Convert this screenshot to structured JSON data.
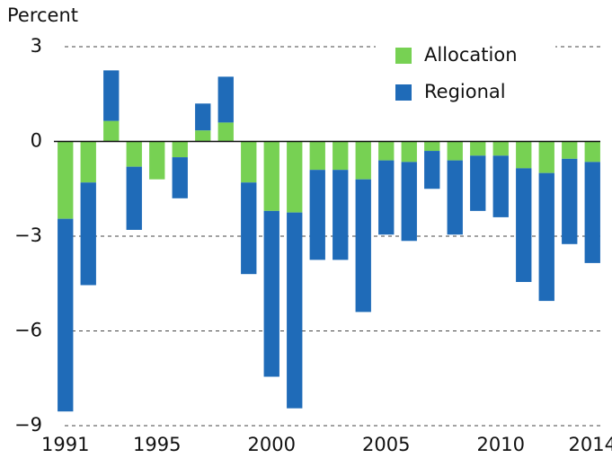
{
  "chart_data": {
    "type": "stacked-bar",
    "ylabel": "Percent",
    "categories": [
      "1991",
      null,
      null,
      null,
      "1995",
      null,
      null,
      null,
      null,
      "2000",
      null,
      null,
      null,
      null,
      "2005",
      null,
      null,
      null,
      null,
      "2010",
      null,
      null,
      null,
      "2014"
    ],
    "series": [
      {
        "name": "Regional",
        "color": "#1f6bb8",
        "values": [
          -6.1,
          -3.25,
          1.6,
          -2.0,
          0,
          -1.3,
          0.85,
          1.45,
          -2.9,
          -5.25,
          -6.2,
          -2.85,
          -2.85,
          -4.2,
          -2.35,
          -2.5,
          -1.2,
          -2.35,
          -1.75,
          -1.95,
          -3.6,
          -4.05,
          -2.7,
          -3.2
        ]
      },
      {
        "name": "Allocation",
        "color": "#77d153",
        "values": [
          -2.45,
          -1.3,
          0.65,
          -0.8,
          -1.2,
          -0.5,
          0.35,
          0.6,
          -1.3,
          -2.2,
          -2.25,
          -0.9,
          -0.9,
          -1.2,
          -0.6,
          -0.65,
          -0.3,
          -0.6,
          -0.45,
          -0.45,
          -0.85,
          -1.0,
          -0.55,
          -0.65
        ]
      }
    ],
    "ylim": [
      -9,
      3
    ],
    "yticks": [
      {
        "value": 3,
        "label": "3"
      },
      {
        "value": 0,
        "label": "0"
      },
      {
        "value": -3,
        "label": "−3"
      },
      {
        "value": -6,
        "label": "−6"
      },
      {
        "value": -9,
        "label": "−9"
      }
    ],
    "grid": true,
    "legend": "top-right"
  }
}
